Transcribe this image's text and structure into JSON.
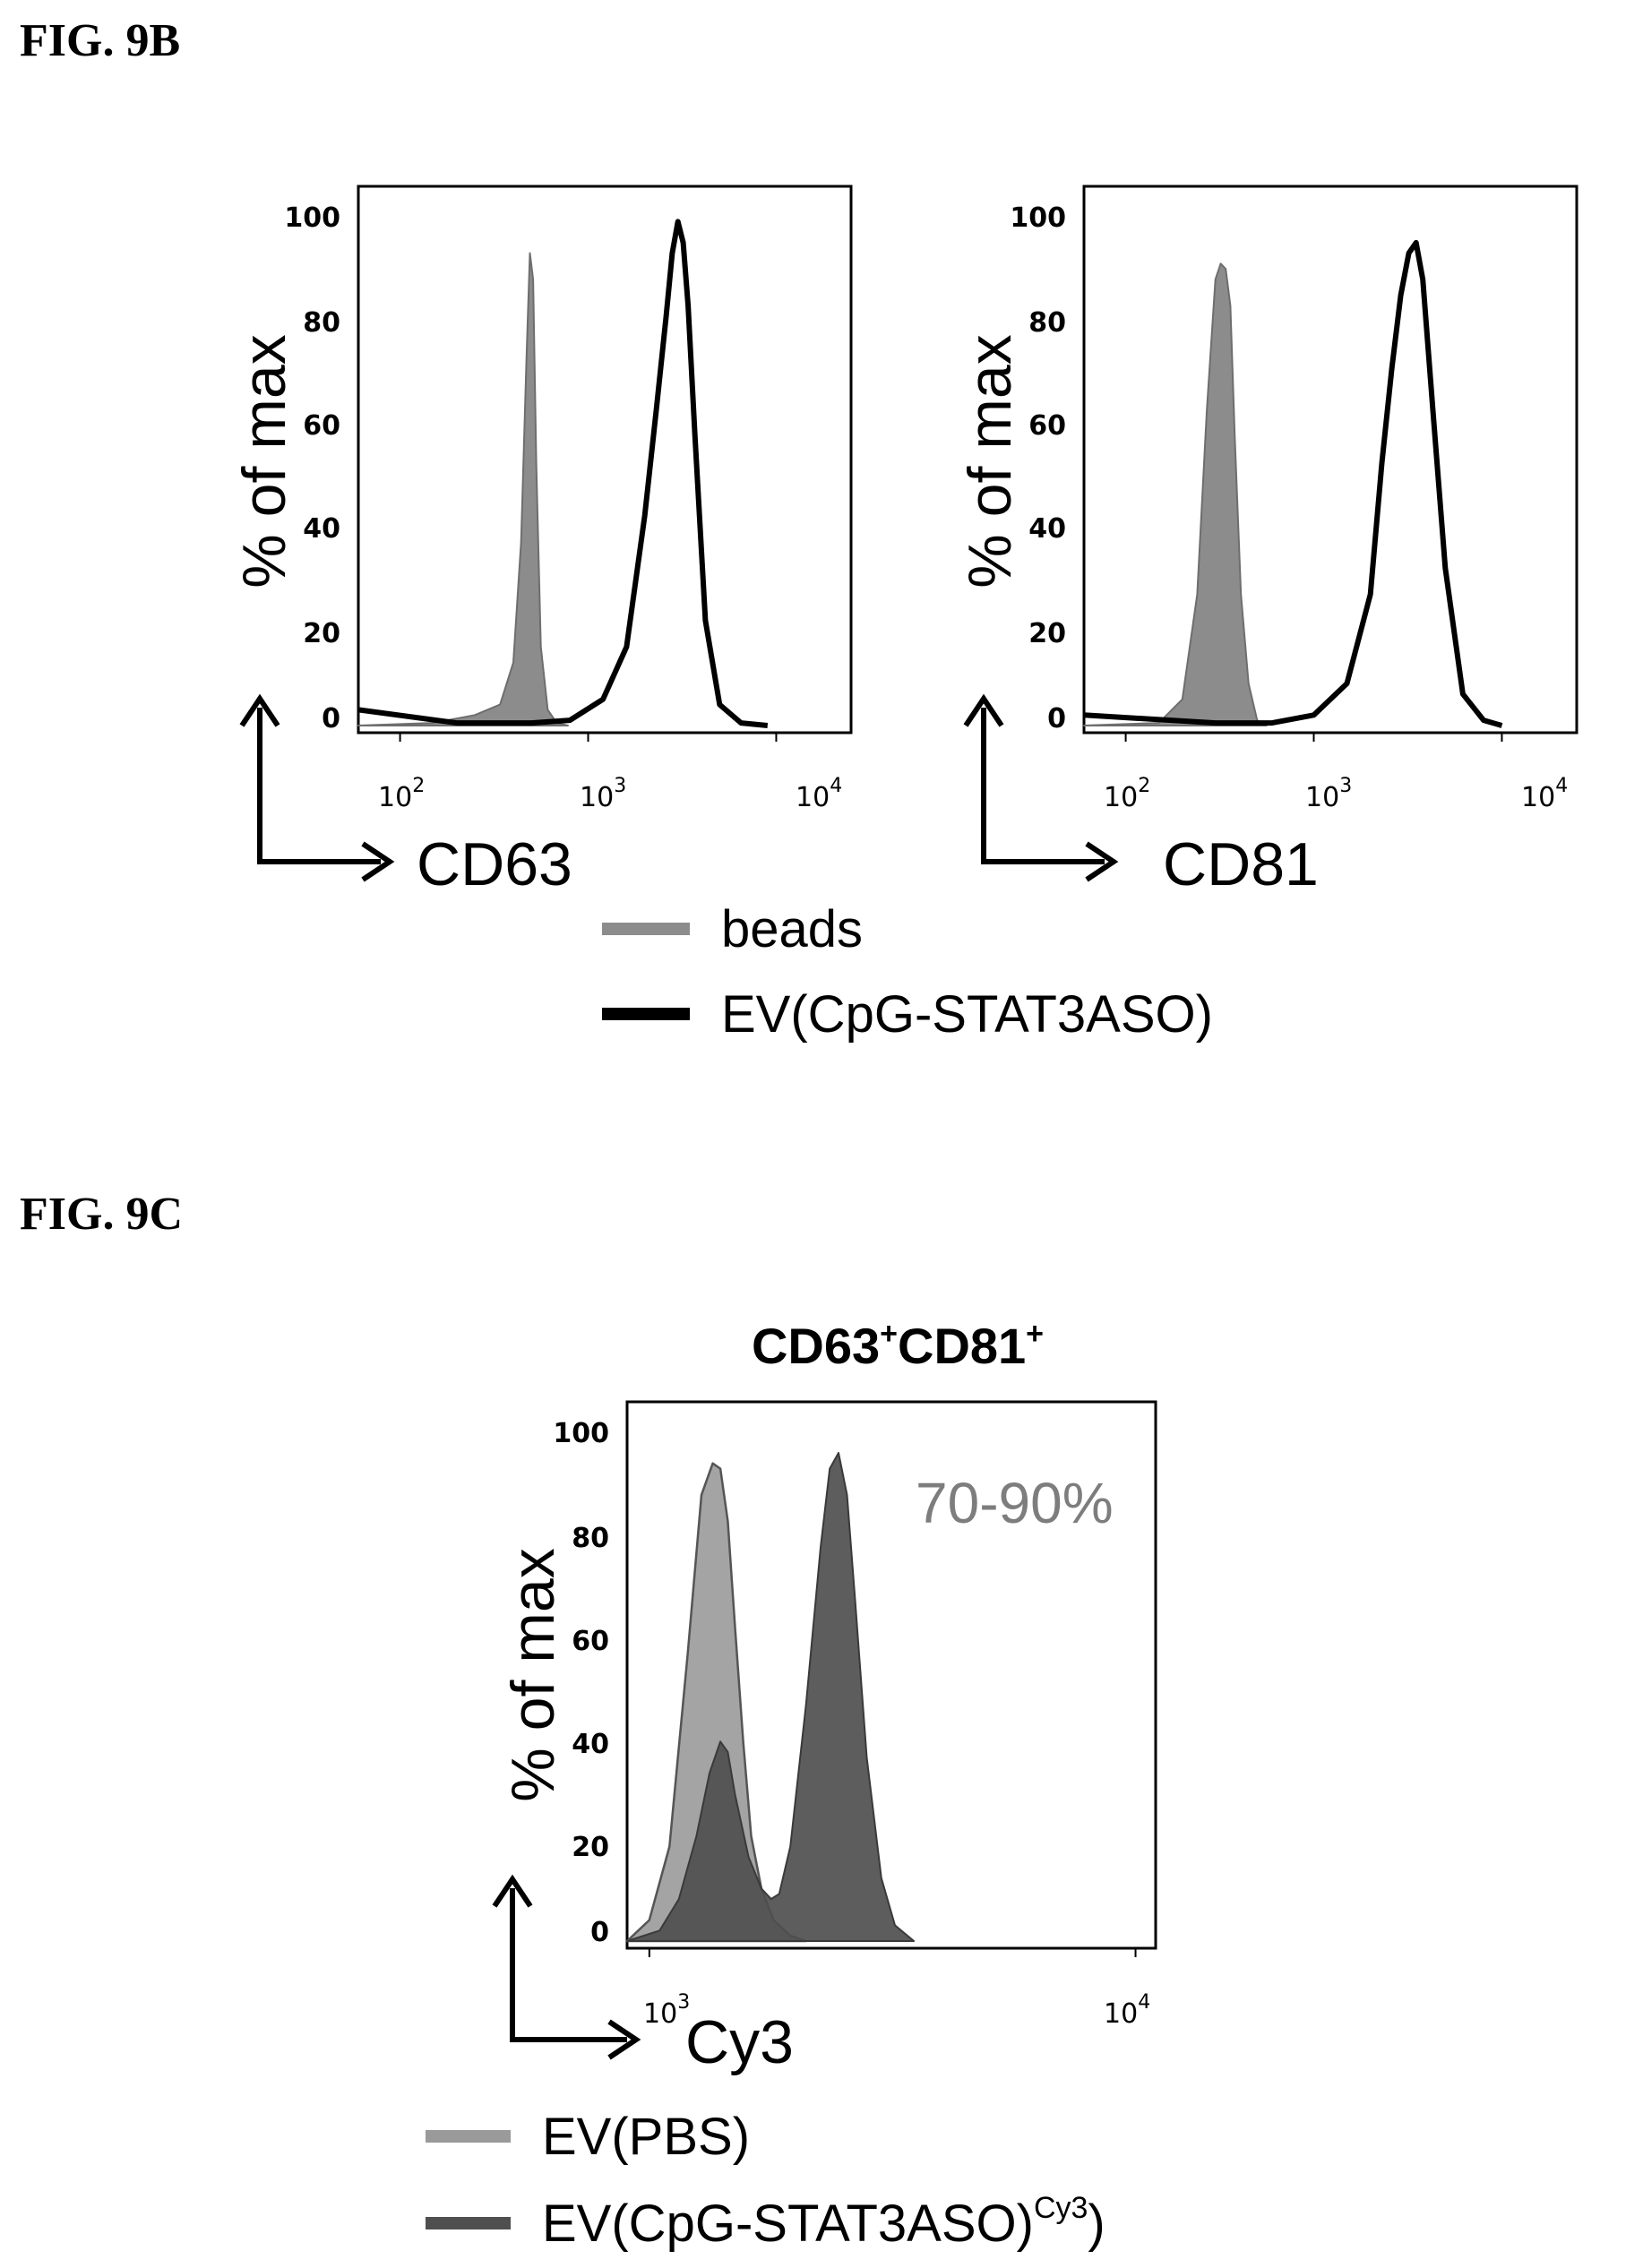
{
  "figures": [
    {
      "label": "FIG. 9B"
    },
    {
      "label": "FIG. 9C"
    }
  ],
  "colors": {
    "beads": "#8c8c8c",
    "ev_stat3aso": "#000000",
    "ev_pbs": "#9a9a9a",
    "ev_stat3aso_cy3": "#4f4f4f"
  },
  "chart_data": [
    {
      "id": "cd63",
      "type": "area",
      "xscale": "log",
      "xlim": [
        60,
        25000
      ],
      "ylim": [
        0,
        100
      ],
      "xlabel": "CD63",
      "ylabel": "% of max",
      "yticks": [
        "0",
        "20",
        "40",
        "60",
        "80",
        "100"
      ],
      "xticks": [
        {
          "base": "10",
          "exp": "2",
          "value": 100
        },
        {
          "base": "10",
          "exp": "3",
          "value": 1000
        },
        {
          "base": "10",
          "exp": "4",
          "value": 10000
        }
      ],
      "series": [
        {
          "name": "beads",
          "fill": true,
          "x": [
            60,
            150,
            250,
            340,
            400,
            440,
            470,
            490,
            510,
            530,
            560,
            610,
            680,
            780
          ],
          "y": [
            0,
            0.5,
            2,
            4,
            12,
            35,
            70,
            90,
            85,
            50,
            15,
            3,
            0.5,
            0
          ]
        },
        {
          "name": "EV(CpG-STAT3ASO)",
          "fill": false,
          "x": [
            60,
            200,
            500,
            800,
            1200,
            1600,
            2000,
            2300,
            2600,
            2800,
            3000,
            3200,
            3400,
            3700,
            4200,
            5000,
            6500,
            9000
          ],
          "y": [
            3,
            0.5,
            0.5,
            1,
            5,
            15,
            40,
            60,
            78,
            90,
            96,
            92,
            80,
            55,
            20,
            4,
            0.5,
            0
          ]
        }
      ]
    },
    {
      "id": "cd81",
      "type": "area",
      "xscale": "log",
      "xlim": [
        60,
        25000
      ],
      "ylim": [
        0,
        100
      ],
      "xlabel": "CD81",
      "ylabel": "% of max",
      "yticks": [
        "0",
        "20",
        "40",
        "60",
        "80",
        "100"
      ],
      "xticks": [
        {
          "base": "10",
          "exp": "2",
          "value": 100
        },
        {
          "base": "10",
          "exp": "3",
          "value": 1000
        },
        {
          "base": "10",
          "exp": "4",
          "value": 10000
        }
      ],
      "series": [
        {
          "name": "beads",
          "fill": true,
          "x": [
            60,
            150,
            200,
            240,
            270,
            300,
            320,
            340,
            360,
            380,
            410,
            450,
            500,
            560
          ],
          "y": [
            0,
            0.5,
            5,
            25,
            60,
            85,
            88,
            87,
            80,
            55,
            25,
            8,
            1,
            0
          ]
        },
        {
          "name": "EV(CpG-STAT3ASO)",
          "fill": false,
          "x": [
            60,
            300,
            600,
            1000,
            1500,
            2000,
            2300,
            2600,
            2900,
            3200,
            3500,
            3800,
            4300,
            5000,
            6200,
            8000,
            10000
          ],
          "y": [
            2,
            0.5,
            0.5,
            2,
            8,
            25,
            50,
            68,
            82,
            90,
            92,
            85,
            60,
            30,
            6,
            1,
            0
          ]
        }
      ]
    },
    {
      "id": "cy3",
      "type": "area",
      "title": "CD63",
      "title_parts": [
        {
          "text": "CD63",
          "sup": "+"
        },
        {
          "text": "CD81",
          "sup": "+"
        }
      ],
      "annotation": "70-90%",
      "xscale": "log",
      "xlim": [
        900,
        11000
      ],
      "ylim": [
        0,
        100
      ],
      "xlabel": "Cy3",
      "ylabel": "% of max",
      "yticks": [
        "0",
        "20",
        "40",
        "60",
        "80",
        "100"
      ],
      "xticks": [
        {
          "base": "10",
          "exp": "3",
          "value": 1000
        },
        {
          "base": "10",
          "exp": "4",
          "value": 10000
        }
      ],
      "series": [
        {
          "name": "EV(PBS)",
          "fill": true,
          "x": [
            900,
            1000,
            1100,
            1200,
            1280,
            1350,
            1400,
            1450,
            1500,
            1560,
            1620,
            1700,
            1800,
            1950,
            2100
          ],
          "y": [
            0,
            4,
            18,
            55,
            85,
            91,
            90,
            80,
            60,
            38,
            20,
            10,
            4,
            1,
            0
          ]
        },
        {
          "name": "EV(CpG-STAT3ASO)",
          "sup": "Cy3",
          "fill": true,
          "x": [
            900,
            1050,
            1150,
            1250,
            1330,
            1400,
            1450,
            1500,
            1600,
            1700,
            1780,
            1850,
            1950,
            2100,
            2250,
            2350,
            2450,
            2550,
            2650,
            2800,
            3000,
            3200,
            3500
          ],
          "y": [
            0,
            2,
            8,
            20,
            32,
            38,
            36,
            28,
            16,
            10,
            8,
            9,
            18,
            45,
            75,
            90,
            93,
            85,
            65,
            35,
            12,
            3,
            0
          ]
        }
      ]
    }
  ]
}
